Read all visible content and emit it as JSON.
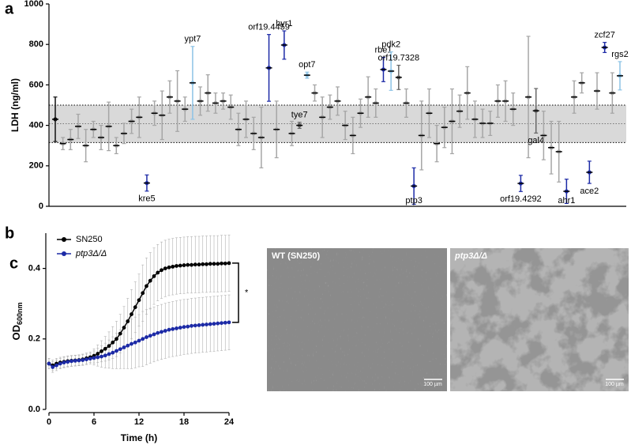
{
  "chart_data": [
    {
      "type": "dot",
      "panel_label": "a",
      "ylabel": "LDH (ng/ml)",
      "ylim": [
        0,
        1000
      ],
      "yticks": [
        0,
        200,
        400,
        600,
        800,
        1000
      ],
      "band": [
        315,
        500
      ],
      "reference_line": 408,
      "band_color": "#d9d9d9",
      "categories": [
        null,
        null,
        null,
        null,
        null,
        null,
        null,
        null,
        null,
        null,
        null,
        null,
        "kre5",
        null,
        null,
        null,
        null,
        null,
        "ypt7",
        null,
        null,
        null,
        null,
        null,
        null,
        null,
        null,
        null,
        "orf19.4459",
        null,
        "hyr1",
        null,
        "tye7",
        "opt7",
        null,
        null,
        null,
        null,
        null,
        null,
        null,
        null,
        null,
        "rbe1",
        "pdk2",
        "orf19.7328",
        null,
        "ptp3",
        null,
        null,
        null,
        null,
        null,
        null,
        null,
        null,
        null,
        null,
        null,
        null,
        null,
        "orf19.4292",
        null,
        "gal4",
        null,
        null,
        null,
        "ahr1",
        null,
        null,
        "ace2",
        null,
        "zcf27",
        null,
        "rgs2"
      ],
      "values": [
        430,
        310,
        330,
        395,
        300,
        380,
        340,
        395,
        300,
        360,
        420,
        440,
        115,
        460,
        450,
        540,
        520,
        480,
        610,
        520,
        560,
        510,
        520,
        490,
        380,
        430,
        360,
        340,
        684,
        380,
        797,
        360,
        400,
        648,
        560,
        440,
        490,
        520,
        400,
        350,
        460,
        540,
        510,
        676,
        668,
        637,
        510,
        100,
        350,
        460,
        310,
        390,
        420,
        470,
        560,
        430,
        410,
        410,
        520,
        520,
        480,
        113,
        540,
        472,
        350,
        290,
        270,
        74,
        540,
        610,
        168,
        570,
        785,
        560,
        645
      ],
      "errors": [
        110,
        30,
        50,
        60,
        80,
        40,
        60,
        120,
        40,
        50,
        60,
        100,
        40,
        60,
        120,
        80,
        150,
        60,
        180,
        70,
        90,
        50,
        40,
        60,
        80,
        90,
        80,
        150,
        165,
        140,
        70,
        60,
        15,
        15,
        40,
        100,
        60,
        70,
        70,
        90,
        70,
        100,
        70,
        60,
        95,
        60,
        70,
        90,
        170,
        120,
        90,
        100,
        160,
        80,
        130,
        90,
        70,
        60,
        80,
        100,
        80,
        40,
        300,
        110,
        120,
        130,
        150,
        60,
        80,
        50,
        55,
        90,
        25,
        100,
        70
      ],
      "colors": [
        "#111111",
        "#a6a6a6",
        "#a6a6a6",
        "#a6a6a6",
        "#a6a6a6",
        "#a6a6a6",
        "#a6a6a6",
        "#a6a6a6",
        "#a6a6a6",
        "#a6a6a6",
        "#a6a6a6",
        "#a6a6a6",
        "#1c2aa6",
        "#a6a6a6",
        "#a6a6a6",
        "#a6a6a6",
        "#a6a6a6",
        "#a6a6a6",
        "#8cc3e6",
        "#a6a6a6",
        "#a6a6a6",
        "#a6a6a6",
        "#a6a6a6",
        "#a6a6a6",
        "#a6a6a6",
        "#a6a6a6",
        "#a6a6a6",
        "#a6a6a6",
        "#1c2aa6",
        "#a6a6a6",
        "#1c2aa6",
        "#a6a6a6",
        "#666666",
        "#8cc3e6",
        "#a6a6a6",
        "#a6a6a6",
        "#a6a6a6",
        "#a6a6a6",
        "#a6a6a6",
        "#a6a6a6",
        "#a6a6a6",
        "#a6a6a6",
        "#a6a6a6",
        "#1c2aa6",
        "#8cc3e6",
        "#666666",
        "#a6a6a6",
        "#1c2aa6",
        "#a6a6a6",
        "#a6a6a6",
        "#a6a6a6",
        "#a6a6a6",
        "#a6a6a6",
        "#a6a6a6",
        "#a6a6a6",
        "#a6a6a6",
        "#a6a6a6",
        "#a6a6a6",
        "#a6a6a6",
        "#a6a6a6",
        "#a6a6a6",
        "#1c2aa6",
        "#a6a6a6",
        "#666666",
        "#a6a6a6",
        "#a6a6a6",
        "#a6a6a6",
        "#1c2aa6",
        "#a6a6a6",
        "#a6a6a6",
        "#1c2aa6",
        "#a6a6a6",
        "#1c2aa6",
        "#a6a6a6",
        "#8cc3e6"
      ]
    },
    {
      "type": "line",
      "panel_label": "b",
      "xlabel": "Time (h)",
      "ylabel": "OD",
      "ylabel_sub": "600nm",
      "xlim": [
        0,
        24
      ],
      "xticks": [
        0,
        6,
        12,
        18,
        24
      ],
      "ylim": [
        0,
        0.5
      ],
      "yticks": [
        {
          "value": 0,
          "label": "0.0"
        },
        {
          "value": 0.2,
          "label": "0.2"
        },
        {
          "value": 0.4,
          "label": "0.4"
        }
      ],
      "annotation": "*",
      "x": [
        0,
        0.5,
        1,
        1.5,
        2,
        2.5,
        3,
        3.5,
        4,
        4.5,
        5,
        5.5,
        6,
        6.5,
        7,
        7.5,
        8,
        8.5,
        9,
        9.5,
        10,
        10.5,
        11,
        11.5,
        12,
        12.5,
        13,
        13.5,
        14,
        14.5,
        15,
        15.5,
        16,
        16.5,
        17,
        17.5,
        18,
        18.5,
        19,
        19.5,
        20,
        20.5,
        21,
        21.5,
        22,
        22.5,
        23,
        23.5,
        24
      ],
      "series": [
        {
          "name": "SN250",
          "color": "#000000",
          "font_style": "normal",
          "values": [
            0.13,
            0.125,
            0.13,
            0.133,
            0.135,
            0.137,
            0.138,
            0.139,
            0.14,
            0.142,
            0.145,
            0.148,
            0.152,
            0.158,
            0.165,
            0.172,
            0.18,
            0.19,
            0.2,
            0.215,
            0.232,
            0.25,
            0.27,
            0.29,
            0.31,
            0.33,
            0.35,
            0.365,
            0.378,
            0.388,
            0.395,
            0.4,
            0.403,
            0.405,
            0.407,
            0.408,
            0.409,
            0.41,
            0.41,
            0.411,
            0.411,
            0.412,
            0.412,
            0.413,
            0.413,
            0.413,
            0.414,
            0.414,
            0.415
          ],
          "errors": [
            0.015,
            0.015,
            0.015,
            0.015,
            0.015,
            0.015,
            0.015,
            0.015,
            0.015,
            0.015,
            0.015,
            0.015,
            0.02,
            0.025,
            0.03,
            0.035,
            0.04,
            0.045,
            0.05,
            0.055,
            0.06,
            0.065,
            0.07,
            0.072,
            0.074,
            0.08,
            0.08,
            0.08,
            0.08,
            0.08,
            0.08,
            0.08,
            0.08,
            0.08,
            0.08,
            0.08,
            0.08,
            0.08,
            0.08,
            0.08,
            0.08,
            0.08,
            0.08,
            0.08,
            0.08,
            0.08,
            0.08,
            0.08,
            0.08
          ]
        },
        {
          "name": "ptp3Δ/Δ",
          "color": "#1c2aa6",
          "font_style": "italic",
          "values": [
            0.13,
            0.12,
            0.125,
            0.13,
            0.133,
            0.135,
            0.137,
            0.138,
            0.139,
            0.14,
            0.142,
            0.144,
            0.146,
            0.148,
            0.15,
            0.153,
            0.157,
            0.161,
            0.166,
            0.171,
            0.176,
            0.181,
            0.186,
            0.19,
            0.195,
            0.2,
            0.205,
            0.209,
            0.213,
            0.217,
            0.22,
            0.223,
            0.226,
            0.228,
            0.23,
            0.232,
            0.234,
            0.235,
            0.237,
            0.238,
            0.239,
            0.24,
            0.241,
            0.242,
            0.243,
            0.244,
            0.245,
            0.246,
            0.247
          ],
          "errors": [
            0.015,
            0.015,
            0.015,
            0.015,
            0.015,
            0.015,
            0.015,
            0.015,
            0.015,
            0.015,
            0.015,
            0.015,
            0.02,
            0.025,
            0.03,
            0.035,
            0.04,
            0.045,
            0.05,
            0.055,
            0.06,
            0.065,
            0.07,
            0.072,
            0.074,
            0.078,
            0.078,
            0.078,
            0.078,
            0.078,
            0.078,
            0.078,
            0.078,
            0.078,
            0.078,
            0.078,
            0.078,
            0.078,
            0.078,
            0.078,
            0.078,
            0.078,
            0.078,
            0.078,
            0.078,
            0.078,
            0.078,
            0.078,
            0.078
          ]
        }
      ]
    }
  ],
  "images": {
    "panel_label": "c",
    "panels": [
      {
        "title": "WT (SN250)",
        "scale_bar": "100 µm"
      },
      {
        "title": "ptp3Δ/Δ",
        "scale_bar": "100 µm"
      }
    ]
  }
}
